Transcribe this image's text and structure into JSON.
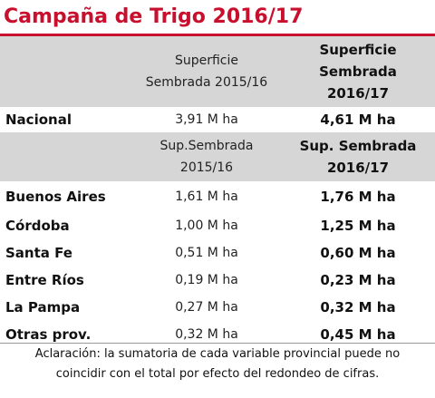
{
  "title": "Campaña de Trigo 2016/17",
  "header1": {
    "col2": [
      "Superficie",
      "Sembrada 2015/16"
    ],
    "col3": [
      "Superficie",
      "Sembrada",
      "2016/17"
    ]
  },
  "national": {
    "name": "Nacional",
    "v1": "3,91 M ha",
    "v2": "4,61 M ha"
  },
  "header2": {
    "col2": [
      "Sup.Sembrada",
      "2015/16"
    ],
    "col3": [
      "Sup. Sembrada",
      "2016/17"
    ]
  },
  "provinces": [
    {
      "name": "Buenos Aires",
      "v1": "1,61 M ha",
      "v2": "1,76 M ha"
    },
    {
      "name": "Córdoba",
      "v1": "1,00 M ha",
      "v2": "1,25 M ha"
    },
    {
      "name": "Santa Fe",
      "v1": "0,51 M ha",
      "v2": "0,60 M ha"
    },
    {
      "name": "Entre Ríos",
      "v1": "0,19 M ha",
      "v2": "0,23 M ha"
    },
    {
      "name": "La Pampa",
      "v1": "0,27 M ha",
      "v2": "0,32 M ha"
    },
    {
      "name": "Otras prov.",
      "v1": "0,32 M ha",
      "v2": "0,45 M ha"
    }
  ],
  "note": [
    "Aclaración: la sumatoria de cada variable provincial puede no",
    "coincidir con el total por efecto del redondeo de cifras."
  ],
  "colors": {
    "accent": "#c8102e",
    "header_bg": "#d6d6d6"
  }
}
